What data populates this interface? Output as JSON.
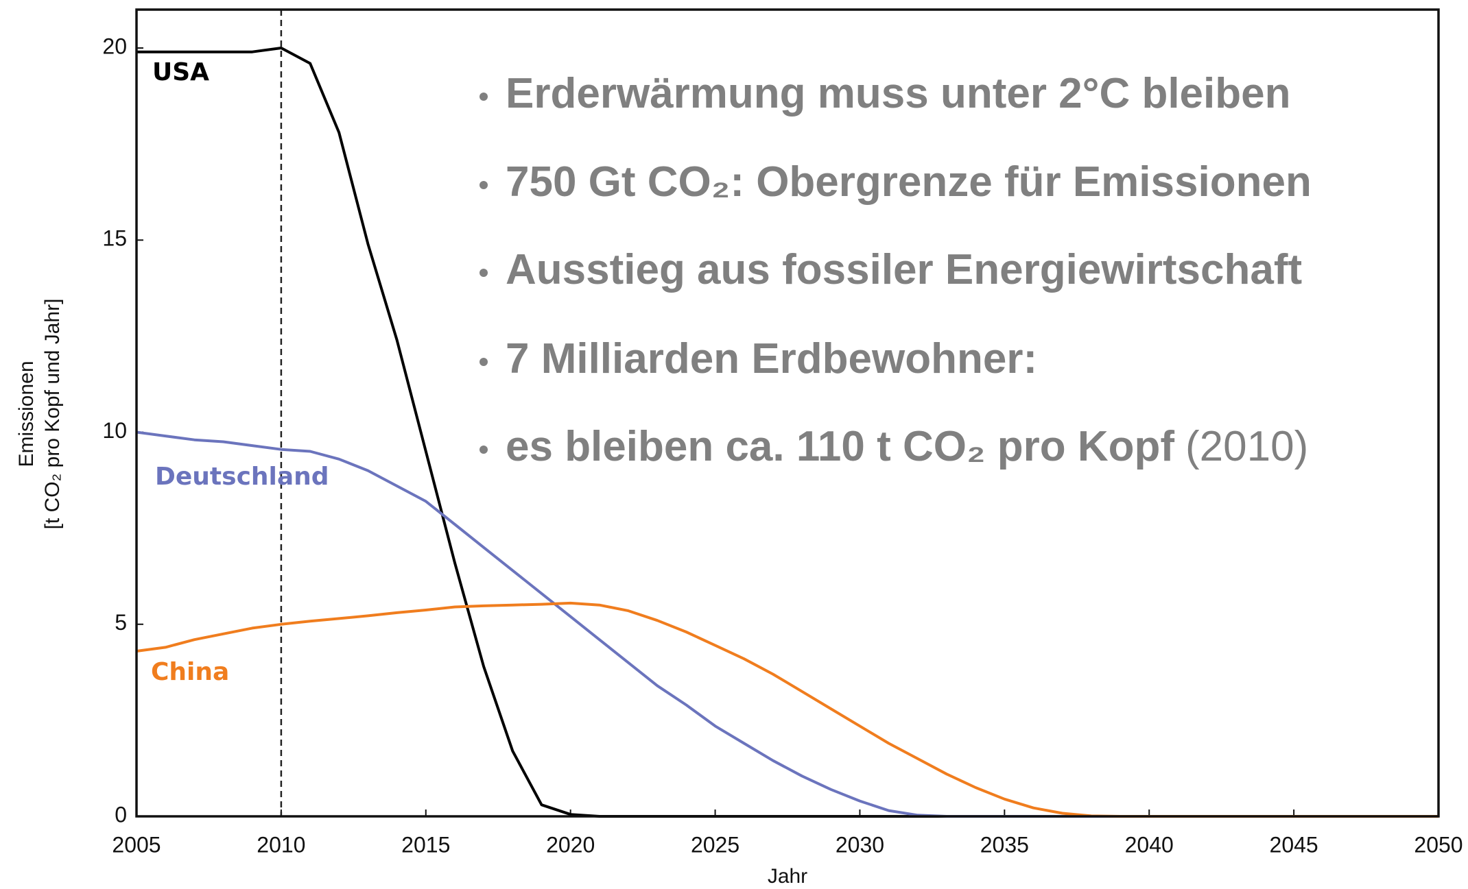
{
  "chart_data": {
    "type": "line",
    "x_label": "Jahr",
    "y_label": [
      "Emissionen",
      "[t CO₂ pro Kopf und Jahr]"
    ],
    "x": [
      2005,
      2006,
      2007,
      2008,
      2009,
      2010,
      2011,
      2012,
      2013,
      2014,
      2015,
      2016,
      2017,
      2018,
      2019,
      2020,
      2021,
      2022,
      2023,
      2024,
      2025,
      2026,
      2027,
      2028,
      2029,
      2030,
      2031,
      2032,
      2033,
      2034,
      2035,
      2036,
      2037,
      2038,
      2039,
      2040,
      2041,
      2042,
      2043,
      2044,
      2045,
      2046,
      2047,
      2048,
      2049,
      2050
    ],
    "series": [
      {
        "name": "USA",
        "color": "#000000",
        "values": [
          19.9,
          19.9,
          19.9,
          19.9,
          19.9,
          20.0,
          19.6,
          17.8,
          14.9,
          12.4,
          9.5,
          6.6,
          3.9,
          1.7,
          0.3,
          0.05,
          0,
          0,
          0,
          0,
          0,
          0,
          0,
          0,
          0,
          0,
          0,
          0,
          0,
          0,
          0,
          0,
          0,
          0,
          0,
          0,
          0,
          0,
          0,
          0,
          0,
          0,
          0,
          0,
          0,
          0
        ]
      },
      {
        "name": "Deutschland",
        "color": "#6b74bd",
        "values": [
          10.0,
          9.9,
          9.8,
          9.75,
          9.65,
          9.55,
          9.5,
          9.3,
          9.0,
          8.6,
          8.2,
          7.6,
          7.0,
          6.4,
          5.8,
          5.2,
          4.6,
          4.0,
          3.4,
          2.9,
          2.35,
          1.9,
          1.45,
          1.05,
          0.7,
          0.4,
          0.15,
          0.03,
          0,
          0,
          0,
          0,
          0,
          0,
          0,
          0,
          0,
          0,
          0,
          0,
          0,
          0,
          0,
          0,
          0,
          0
        ]
      },
      {
        "name": "China",
        "color": "#f07d1e",
        "values": [
          4.3,
          4.4,
          4.6,
          4.75,
          4.9,
          5.0,
          5.08,
          5.15,
          5.22,
          5.3,
          5.37,
          5.45,
          5.48,
          5.5,
          5.52,
          5.55,
          5.5,
          5.35,
          5.1,
          4.8,
          4.45,
          4.1,
          3.7,
          3.25,
          2.8,
          2.35,
          1.9,
          1.5,
          1.1,
          0.75,
          0.45,
          0.22,
          0.08,
          0.01,
          0,
          0,
          0,
          0,
          0,
          0,
          0,
          0,
          0,
          0,
          0,
          0
        ]
      }
    ],
    "xlim": [
      2005,
      2050
    ],
    "ylim": [
      0,
      21
    ],
    "xticks": [
      2005,
      2010,
      2015,
      2020,
      2025,
      2030,
      2035,
      2040,
      2045,
      2050
    ],
    "yticks": [
      0,
      5,
      10,
      15,
      20
    ],
    "vline": 2010,
    "annotations": [
      "Erderwärmung muss unter 2°C bleiben",
      "750 Gt CO₂: Obergrenze für Emissionen",
      "Ausstieg aus fossiler Energiewirtschaft",
      "7 Milliarden Erdbewohner:",
      "es bleiben ca. 110 t CO₂ pro Kopf"
    ],
    "annotation_note": "(2010)"
  }
}
